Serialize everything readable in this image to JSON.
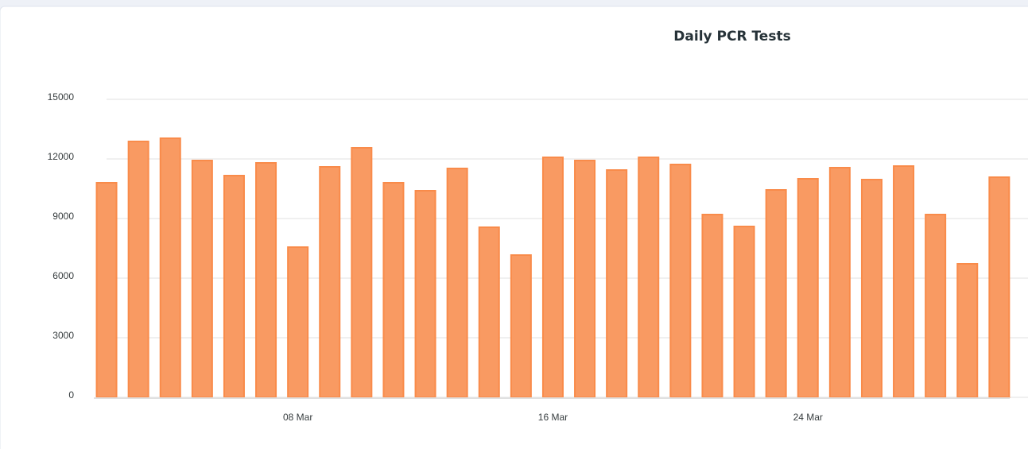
{
  "chart_data": {
    "type": "bar",
    "title": "Daily PCR Tests",
    "categories": [
      null,
      null,
      null,
      null,
      null,
      null,
      "08 Mar",
      null,
      null,
      null,
      null,
      null,
      null,
      null,
      "16 Mar",
      null,
      null,
      null,
      null,
      null,
      null,
      null,
      "24 Mar",
      null,
      null,
      null,
      null,
      null,
      null
    ],
    "values": [
      10800,
      12880,
      13040,
      11920,
      11160,
      11800,
      7560,
      11600,
      12560,
      10800,
      10400,
      11520,
      8560,
      7160,
      12080,
      11920,
      11440,
      12080,
      11720,
      9200,
      8600,
      10440,
      11000,
      11560,
      10960,
      11640,
      9200,
      6720,
      11080
    ],
    "color": "#f99a62",
    "ylim": [
      0,
      15000
    ],
    "yticks": [
      0,
      3000,
      6000,
      9000,
      12000,
      15000
    ],
    "grid": true
  }
}
